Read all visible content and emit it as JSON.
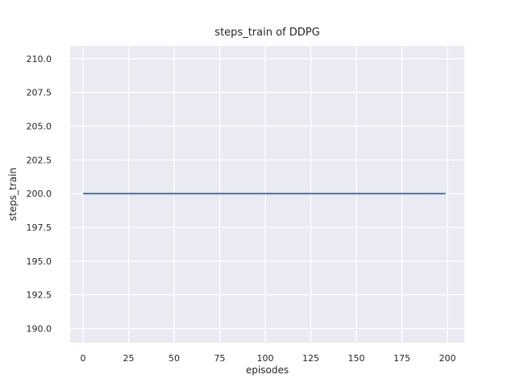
{
  "chart_data": {
    "type": "line",
    "title": "steps_train of DDPG",
    "xlabel": "episodes",
    "ylabel": "steps_train",
    "x": [
      0,
      199
    ],
    "series": [
      {
        "name": "steps_train",
        "color": "#4c72b0",
        "y": [
          200,
          200
        ]
      }
    ],
    "xlim": [
      -7.1,
      209.3
    ],
    "ylim": [
      188.95,
      210.95
    ],
    "xticks": {
      "values": [
        0,
        25,
        50,
        75,
        100,
        125,
        150,
        175,
        200
      ],
      "labels": [
        "0",
        "25",
        "50",
        "75",
        "100",
        "125",
        "150",
        "175",
        "200"
      ]
    },
    "yticks": {
      "values": [
        190.0,
        192.5,
        195.0,
        197.5,
        200.0,
        202.5,
        205.0,
        207.5,
        210.0
      ],
      "labels": [
        "190.0",
        "192.5",
        "195.0",
        "197.5",
        "200.0",
        "202.5",
        "205.0",
        "207.5",
        "210.0"
      ]
    },
    "grid": true,
    "legend_position": null,
    "colors": {
      "figure_bg": "#ffffff",
      "plot_bg": "#eaeaf2",
      "grid": "#ffffff",
      "text": "#262626",
      "line": "#4c72b0"
    }
  }
}
